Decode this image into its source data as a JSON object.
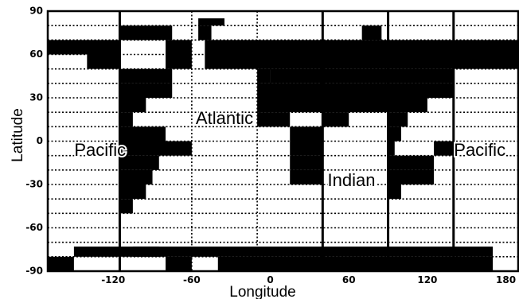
{
  "map": {
    "xlabel": "Longitude",
    "ylabel": "Latitude",
    "lon_range": [
      -170,
      190
    ],
    "lat_range": [
      -90,
      90
    ],
    "x_ticks": [
      {
        "value": -120,
        "label": "-120"
      },
      {
        "value": -60,
        "label": "-60"
      },
      {
        "value": 0,
        "label": "0"
      },
      {
        "value": 60,
        "label": "60"
      },
      {
        "value": 120,
        "label": "120"
      },
      {
        "value": 180,
        "label": "180"
      }
    ],
    "y_ticks": [
      {
        "value": 90,
        "label": "90"
      },
      {
        "value": 60,
        "label": "60"
      },
      {
        "value": 30,
        "label": "30"
      },
      {
        "value": 0,
        "label": "0"
      },
      {
        "value": -30,
        "label": "-30"
      },
      {
        "value": -60,
        "label": "-60"
      },
      {
        "value": -90,
        "label": "-90"
      }
    ],
    "grid_step_lat": 10,
    "solid_meridians": [
      -115,
      40,
      90,
      140
    ],
    "dotted_meridians": [
      -60,
      -10,
      90
    ],
    "region_labels": [
      {
        "text": "Atlantic",
        "lon": -35,
        "lat": 15
      },
      {
        "text": "Pacific",
        "lon": -130,
        "lat": -7
      },
      {
        "text": "Indian",
        "lon": 62,
        "lat": -28
      },
      {
        "text": "Pacific",
        "lon": 160,
        "lat": -7
      }
    ],
    "land_color": "#000000",
    "ocean_color": "#ffffff",
    "land_cells": [
      [
        -170,
        -115,
        60,
        70
      ],
      [
        -80,
        -60,
        60,
        70
      ],
      [
        -50,
        190,
        60,
        70
      ],
      [
        -140,
        -115,
        50,
        60
      ],
      [
        -80,
        -60,
        50,
        60
      ],
      [
        -50,
        190,
        50,
        60
      ],
      [
        -115,
        -75,
        70,
        80
      ],
      [
        -55,
        -45,
        70,
        80
      ],
      [
        70,
        85,
        70,
        80
      ],
      [
        -55,
        -35,
        80,
        85
      ],
      [
        -115,
        -75,
        40,
        50
      ],
      [
        -10,
        0,
        40,
        50
      ],
      [
        0,
        140,
        40,
        50
      ],
      [
        -115,
        -75,
        30,
        40
      ],
      [
        -10,
        140,
        30,
        40
      ],
      [
        -115,
        -95,
        20,
        30
      ],
      [
        -10,
        120,
        20,
        30
      ],
      [
        -115,
        -105,
        10,
        20
      ],
      [
        -10,
        15,
        10,
        20
      ],
      [
        40,
        60,
        10,
        20
      ],
      [
        90,
        105,
        10,
        20
      ],
      [
        -115,
        -80,
        0,
        10
      ],
      [
        15,
        40,
        0,
        10
      ],
      [
        90,
        100,
        0,
        10
      ],
      [
        -115,
        -60,
        -10,
        0
      ],
      [
        15,
        40,
        -10,
        0
      ],
      [
        90,
        95,
        -10,
        0
      ],
      [
        125,
        140,
        -10,
        0
      ],
      [
        -115,
        -85,
        -20,
        -10
      ],
      [
        15,
        40,
        -20,
        -10
      ],
      [
        90,
        125,
        -20,
        -10
      ],
      [
        -115,
        -90,
        -30,
        -20
      ],
      [
        15,
        40,
        -30,
        -20
      ],
      [
        90,
        125,
        -30,
        -20
      ],
      [
        -115,
        -95,
        -40,
        -30
      ],
      [
        90,
        100,
        -40,
        -30
      ],
      [
        -115,
        -105,
        -50,
        -40
      ],
      [
        -150,
        170,
        -73,
        -80
      ],
      [
        -170,
        -150,
        -80,
        -90
      ],
      [
        -80,
        -60,
        -80,
        -90
      ],
      [
        -40,
        170,
        -80,
        -90
      ],
      [
        -105,
        -85,
        -73,
        -80
      ]
    ]
  }
}
